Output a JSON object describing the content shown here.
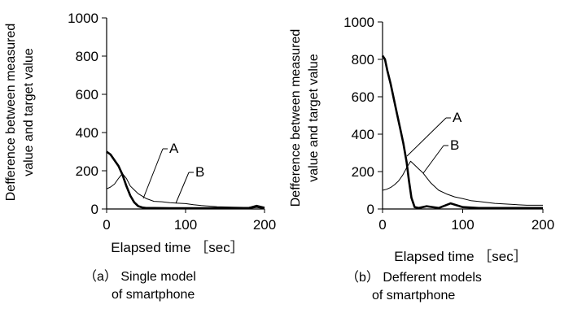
{
  "chart_data": [
    {
      "type": "line",
      "caption_line1": "（a）  Single model",
      "caption_line2": "of smartphone",
      "xlabel": "Elapsed time ［sec］",
      "ylabel_line1": "Defference between measured",
      "ylabel_line2": "value and target value",
      "xlim": [
        0,
        200
      ],
      "ylim": [
        0,
        1000
      ],
      "xticks": [
        0,
        100,
        200
      ],
      "yticks": [
        0,
        200,
        400,
        600,
        800,
        1000
      ],
      "series": [
        {
          "name": "A",
          "style": "thick",
          "x": [
            0,
            5,
            10,
            15,
            20,
            25,
            30,
            35,
            40,
            45,
            50,
            60,
            80,
            100,
            120,
            150,
            180,
            190,
            195,
            200
          ],
          "y": [
            300,
            285,
            255,
            225,
            180,
            120,
            70,
            35,
            15,
            8,
            5,
            5,
            4,
            4,
            4,
            5,
            5,
            12,
            8,
            5
          ]
        },
        {
          "name": "B",
          "style": "thin",
          "x": [
            0,
            5,
            10,
            15,
            20,
            25,
            30,
            35,
            40,
            50,
            60,
            70,
            80,
            90,
            100,
            110,
            120,
            140,
            160,
            180,
            190,
            200
          ],
          "y": [
            105,
            115,
            130,
            160,
            185,
            160,
            120,
            100,
            80,
            55,
            40,
            38,
            33,
            30,
            28,
            22,
            18,
            12,
            10,
            8,
            20,
            10
          ]
        }
      ],
      "annotations": [
        "A",
        "B"
      ]
    },
    {
      "type": "line",
      "caption_line1": "（b）  Defferent models",
      "caption_line2": "of smartphone",
      "xlabel": "Elapsed time ［sec］",
      "ylabel_line1": "Defference between measured",
      "ylabel_line2": "value and target value",
      "xlim": [
        0,
        200
      ],
      "ylim": [
        0,
        1000
      ],
      "xticks": [
        0,
        100,
        200
      ],
      "yticks": [
        0,
        200,
        400,
        600,
        800,
        1000
      ],
      "series": [
        {
          "name": "A",
          "style": "thick",
          "x": [
            0,
            3,
            6,
            10,
            14,
            18,
            22,
            26,
            30,
            33,
            36,
            40,
            45,
            55,
            70,
            85,
            100,
            120,
            150,
            200
          ],
          "y": [
            820,
            800,
            740,
            670,
            590,
            510,
            430,
            350,
            250,
            150,
            60,
            10,
            5,
            15,
            5,
            30,
            10,
            5,
            5,
            5
          ]
        },
        {
          "name": "B",
          "style": "thin",
          "x": [
            0,
            5,
            10,
            15,
            20,
            25,
            30,
            35,
            40,
            45,
            50,
            60,
            70,
            80,
            90,
            100,
            110,
            120,
            140,
            160,
            180,
            200
          ],
          "y": [
            100,
            105,
            115,
            130,
            150,
            180,
            220,
            255,
            235,
            215,
            195,
            140,
            100,
            80,
            65,
            55,
            45,
            40,
            30,
            25,
            20,
            20
          ]
        }
      ],
      "annotations": [
        "A",
        "B"
      ]
    }
  ]
}
